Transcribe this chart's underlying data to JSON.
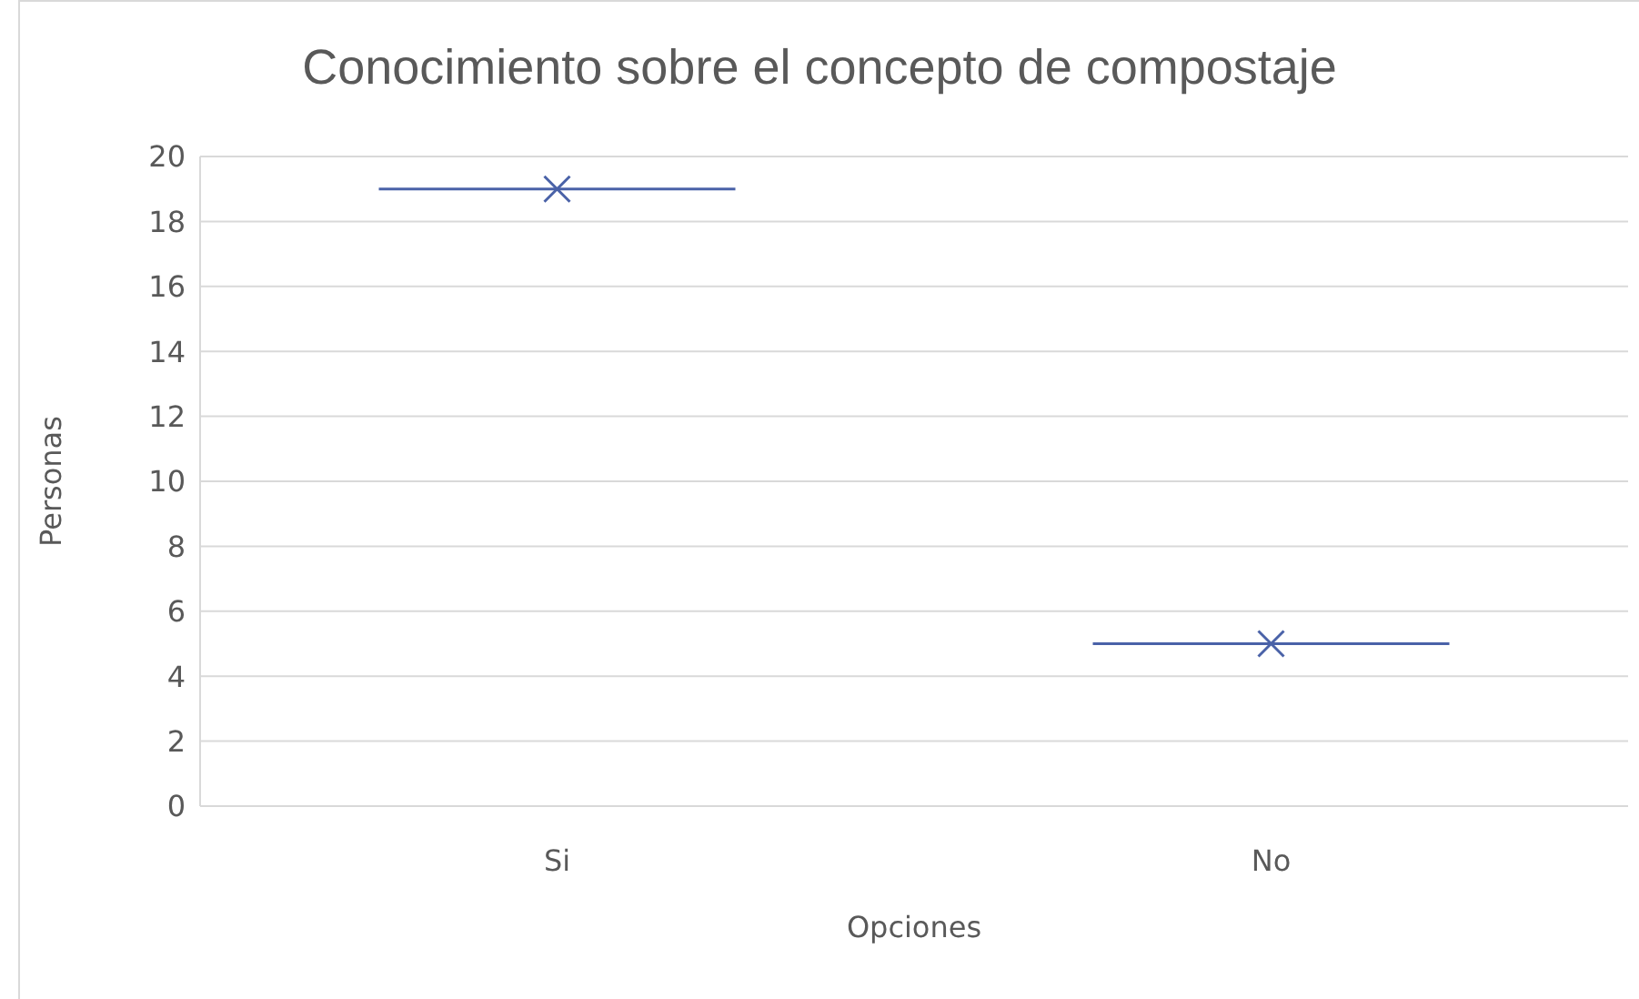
{
  "chart_data": {
    "type": "scatter",
    "title": "Conocimiento sobre el concepto de compostaje",
    "xlabel": "Opciones",
    "ylabel": "Personas",
    "categories": [
      "Si",
      "No"
    ],
    "series": [
      {
        "color": "#4a62a8",
        "values": [
          19,
          5
        ]
      }
    ],
    "ylim": [
      0,
      20
    ],
    "yticks": [
      0,
      2,
      4,
      6,
      8,
      10,
      12,
      14,
      16,
      18,
      20
    ],
    "grid": "y",
    "marker": "cross"
  }
}
